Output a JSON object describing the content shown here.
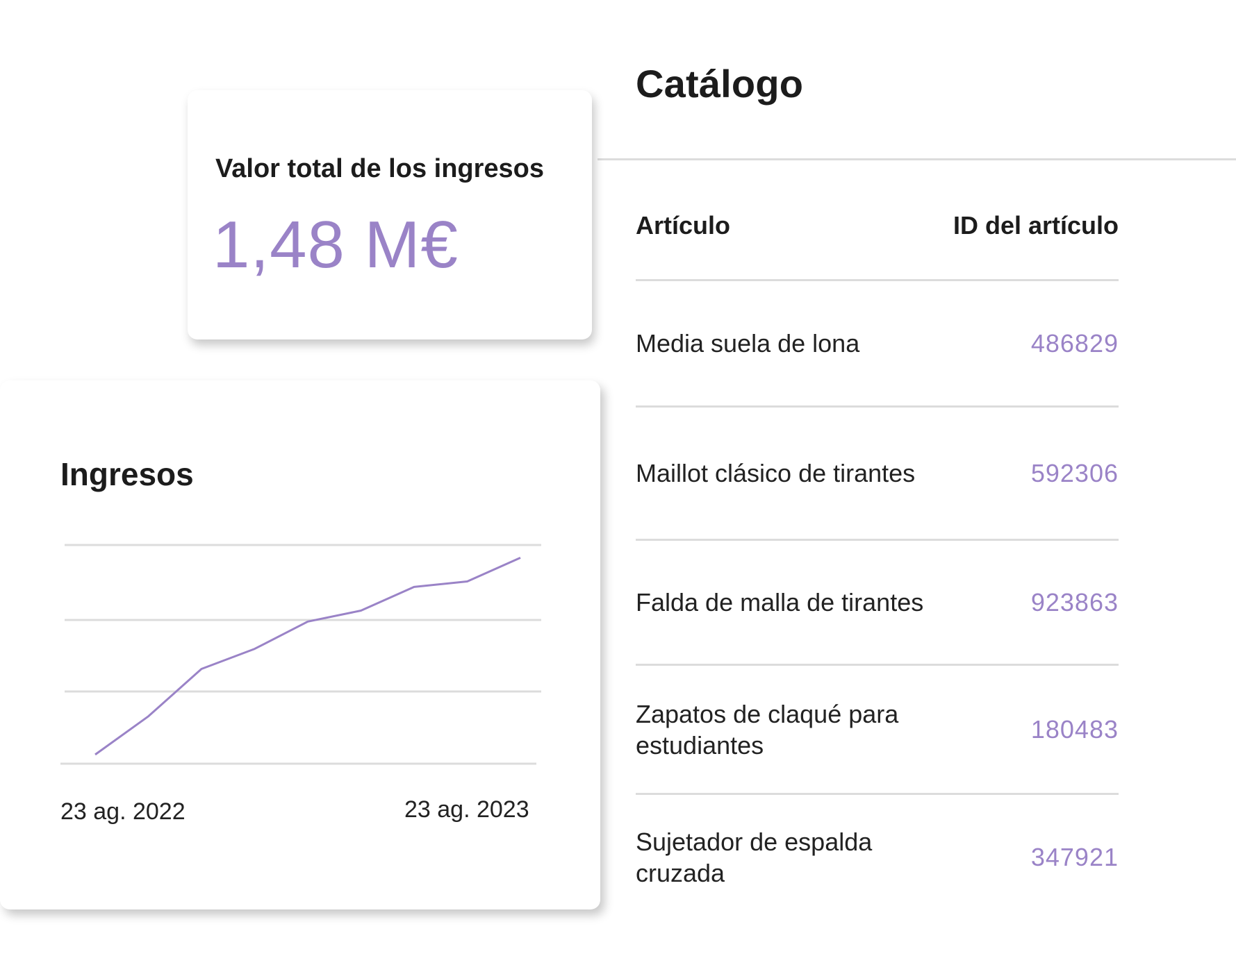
{
  "catalog": {
    "title": "Catálogo",
    "column_item": "Artículo",
    "column_id": "ID del artículo",
    "rows": [
      {
        "name": "Media suela de lona",
        "id": "486829"
      },
      {
        "name": "Maillot clásico de tirantes",
        "id": "592306"
      },
      {
        "name": "Falda de malla de tirantes",
        "id": "923863"
      },
      {
        "name": "Zapatos de claqué para estudiantes",
        "id": "180483"
      },
      {
        "name": "Sujetador de espalda cruzada",
        "id": "347921"
      }
    ]
  },
  "revenue_total": {
    "label": "Valor total de los ingresos",
    "value": "1,48 M€"
  },
  "colors": {
    "accent": "#9a83c7",
    "divider": "#dcdcdc",
    "text": "#1c1c1c"
  },
  "chart_data": {
    "type": "line",
    "title": "Ingresos",
    "xlabel": "",
    "ylabel": "",
    "x_tick_labels": [
      "23 ag. 2022",
      "23 ag. 2023"
    ],
    "grid": true,
    "series": [
      {
        "values": [
          0.05,
          0.26,
          0.52,
          0.63,
          0.78,
          0.84,
          0.97,
          1.0,
          1.13
        ]
      }
    ],
    "ylim": [
      0,
      1.2
    ]
  }
}
